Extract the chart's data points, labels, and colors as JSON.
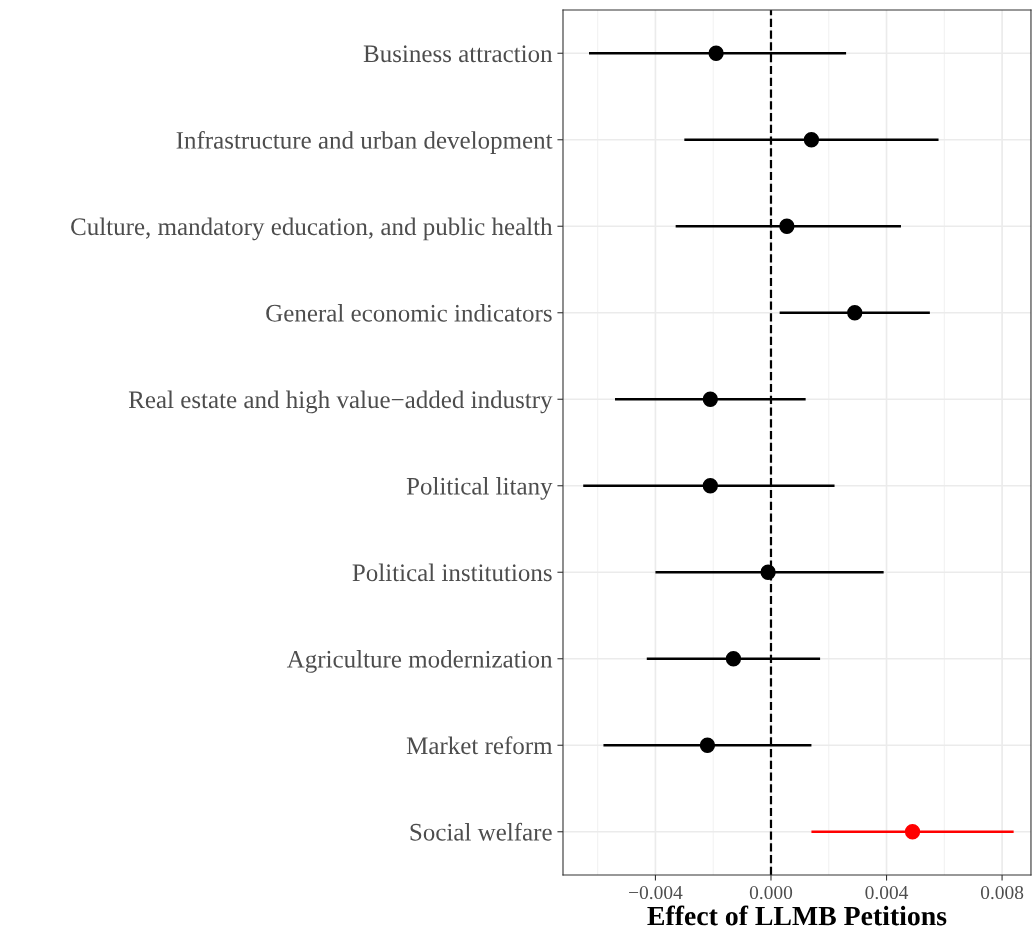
{
  "chart_data": {
    "type": "scatter",
    "orientation": "horizontal",
    "xlabel": "Effect of LLMB Petitions",
    "categories": [
      "Business attraction",
      "Infrastructure and urban development",
      "Culture, mandatory education, and public health",
      "General economic indicators",
      "Real estate and high value−added industry",
      "Political litany",
      "Political institutions",
      "Agriculture modernization",
      "Market reform",
      "Social welfare"
    ],
    "values": [
      -0.0019,
      0.0014,
      0.00055,
      0.0029,
      -0.0021,
      -0.0021,
      -0.0001,
      -0.0013,
      -0.0022,
      0.0049
    ],
    "errors": [
      [
        -0.0063,
        0.0026
      ],
      [
        -0.003,
        0.0058
      ],
      [
        -0.0033,
        0.0045
      ],
      [
        0.0003,
        0.0055
      ],
      [
        -0.0054,
        0.0012
      ],
      [
        -0.0065,
        0.0022
      ],
      [
        -0.004,
        0.0039
      ],
      [
        -0.0043,
        0.0017
      ],
      [
        -0.0058,
        0.0014
      ],
      [
        0.0014,
        0.0084
      ]
    ],
    "colors": [
      "#000000",
      "#000000",
      "#000000",
      "#000000",
      "#000000",
      "#000000",
      "#000000",
      "#000000",
      "#000000",
      "#ff0000"
    ],
    "xlim": [
      -0.0072,
      0.009
    ],
    "xticks": [
      {
        "value": -0.004,
        "label": "−0.004"
      },
      {
        "value": 0,
        "label": "0.000"
      },
      {
        "value": 0.004,
        "label": "0.004"
      },
      {
        "value": 0.008,
        "label": "0.008"
      }
    ],
    "ref_lines": [
      {
        "axis": "x",
        "value": 0,
        "color": "#000000",
        "line_style": "dashed"
      }
    ],
    "grid": true,
    "marker": "circle"
  }
}
